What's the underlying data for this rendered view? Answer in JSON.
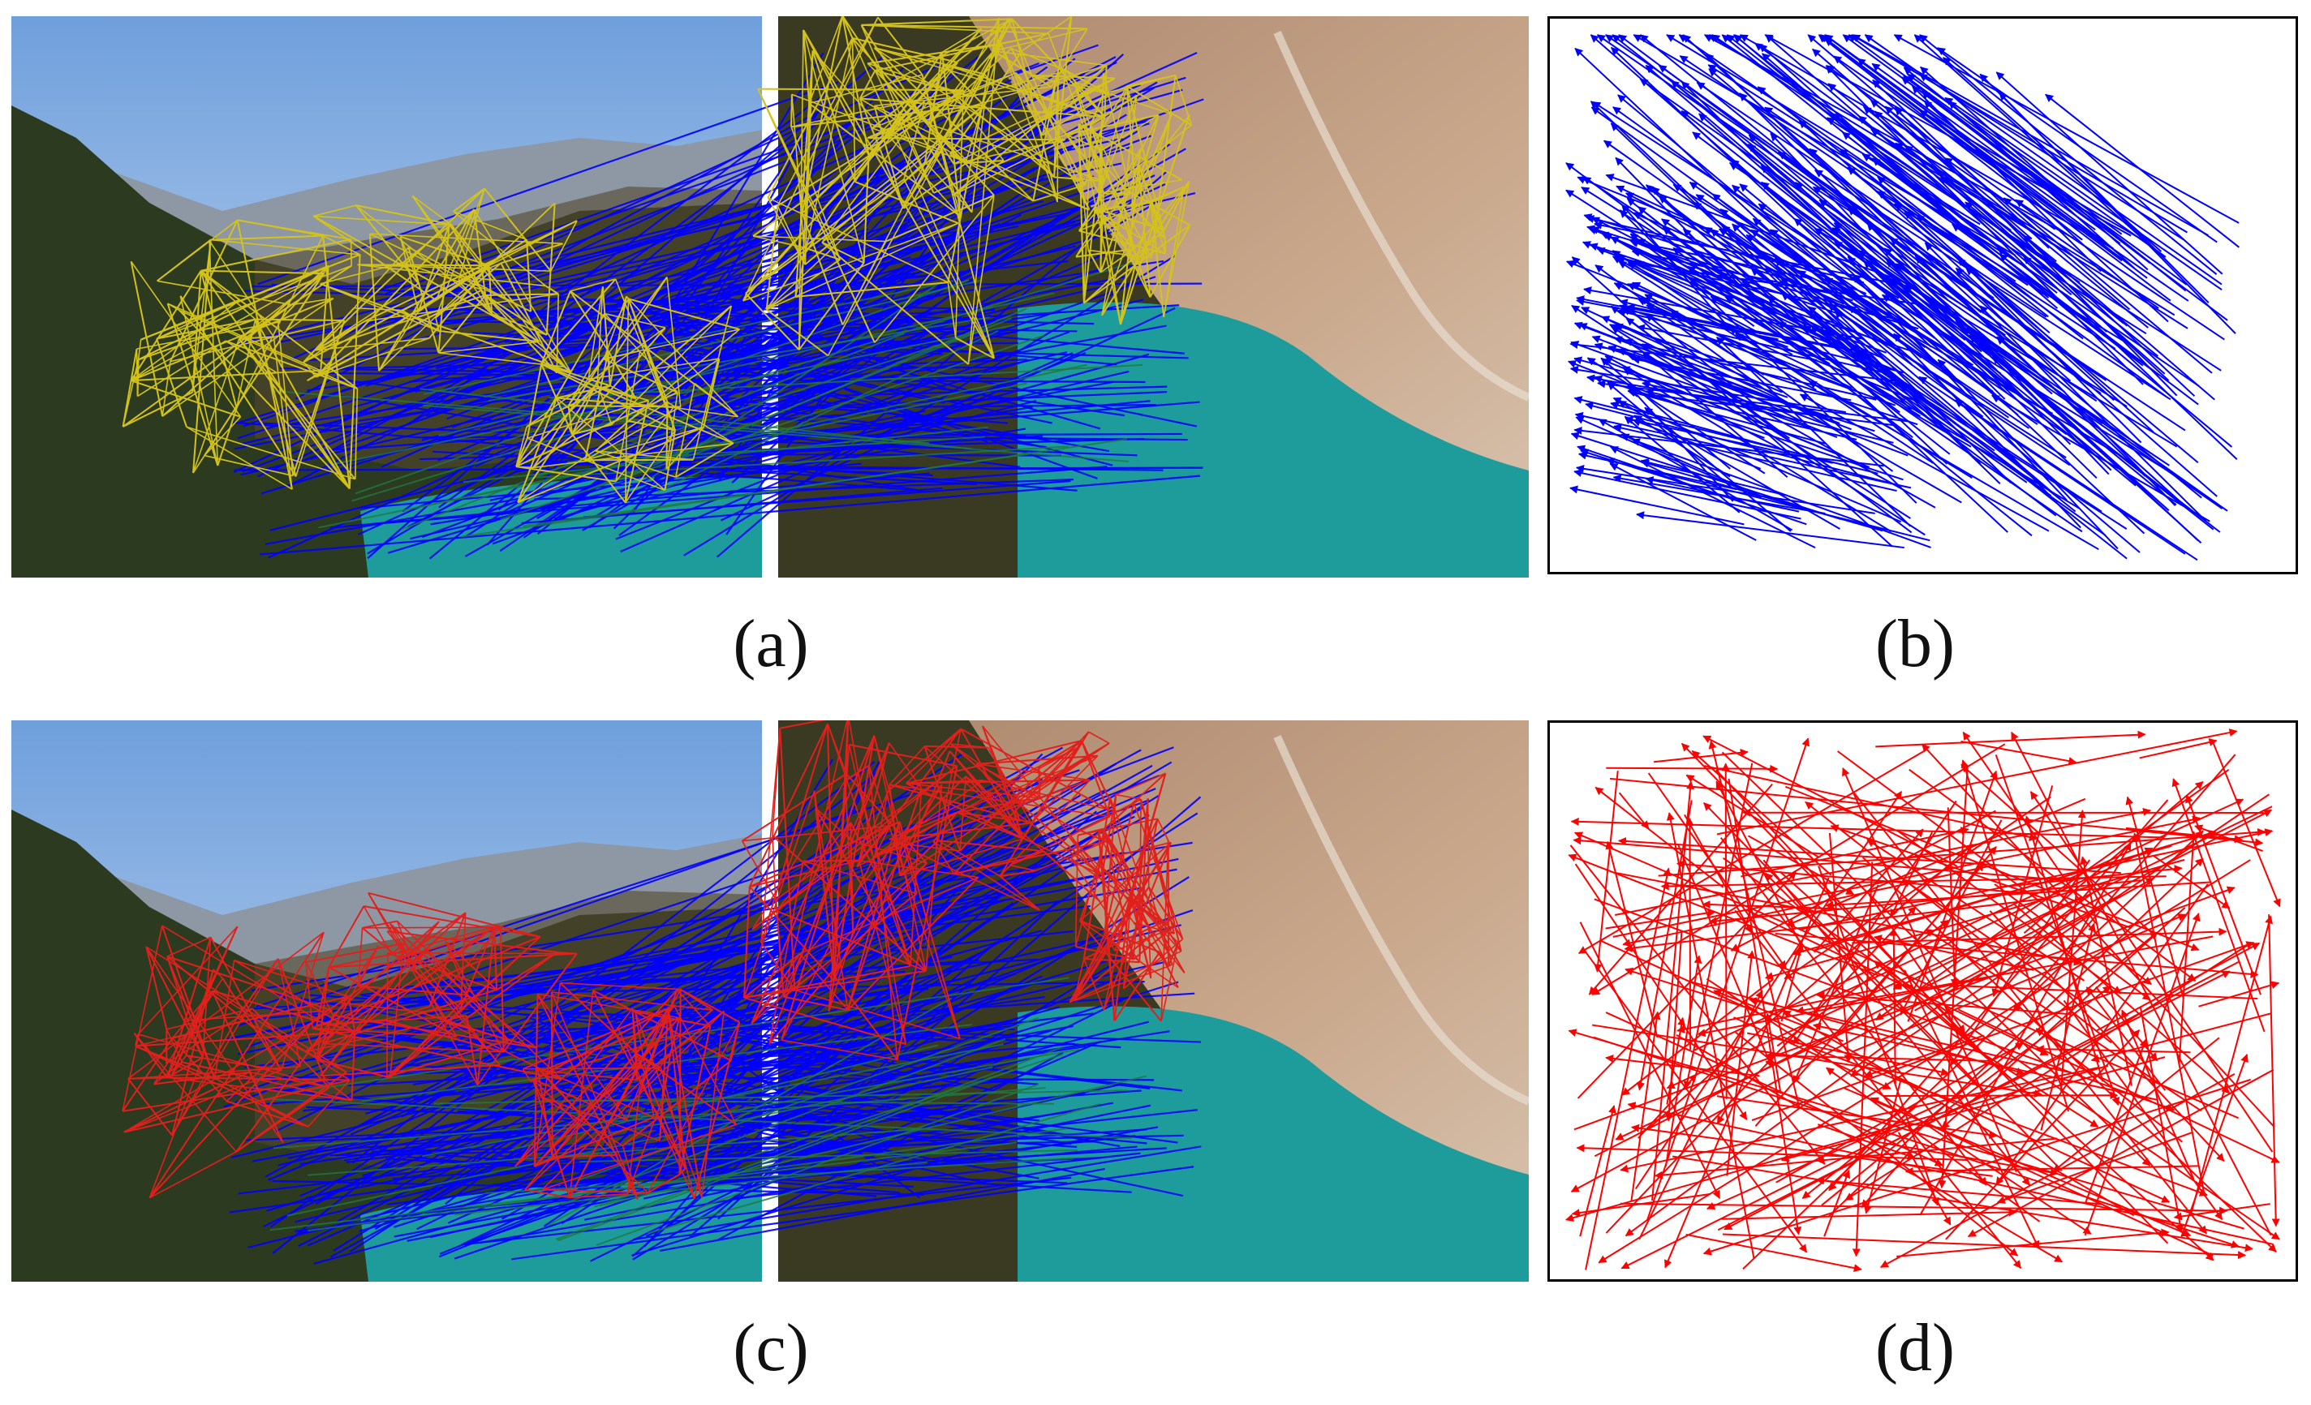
{
  "figure": {
    "panels": [
      {
        "id": "a",
        "caption": "(a)",
        "kind": "image-pair-matches",
        "graph_color": "#d4c21c",
        "match_color": "#0000ff"
      },
      {
        "id": "b",
        "caption": "(b)",
        "kind": "motion-vector-field",
        "vector_color": "#0000ff"
      },
      {
        "id": "c",
        "caption": "(c)",
        "kind": "image-pair-matches",
        "graph_color": "#e0201c",
        "match_color": "#0000ff"
      },
      {
        "id": "d",
        "caption": "(d)",
        "kind": "motion-vector-field",
        "vector_color": "#ff0000"
      }
    ],
    "scene_colors": {
      "sky_top": "#6f9fdc",
      "sky_bottom": "#cfe0f2",
      "mountain_far": "#8d98a4",
      "forest": "#2c3a1f",
      "slope_warm": "#b99576",
      "water": "#1e9c9c"
    }
  }
}
